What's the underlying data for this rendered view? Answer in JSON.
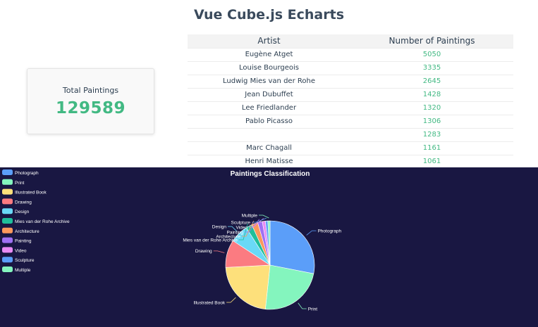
{
  "header": {
    "title": "Vue Cube.js Echarts"
  },
  "stat": {
    "label": "Total Paintings",
    "value": "129589"
  },
  "table": {
    "columns": [
      "Artist",
      "Number of Paintings"
    ],
    "rows": [
      [
        "Eugène Atget",
        "5050"
      ],
      [
        "Louise Bourgeois",
        "3335"
      ],
      [
        "Ludwig Mies van der Rohe",
        "2645"
      ],
      [
        "Jean Dubuffet",
        "1428"
      ],
      [
        "Lee Friedlander",
        "1320"
      ],
      [
        "Pablo Picasso",
        "1306"
      ],
      [
        "",
        "1283"
      ],
      [
        "Marc Chagall",
        "1161"
      ],
      [
        "Henri Matisse",
        "1061"
      ]
    ]
  },
  "colors": {
    "accent": "#42b983",
    "chart_bg": "#191742"
  },
  "chart_data": {
    "type": "pie",
    "title": "Paintings Classification",
    "legend_position": "left",
    "categories": [
      "Photograph",
      "Print",
      "Illustrated Book",
      "Drawing",
      "Design",
      "Mies van der Rohe Archive",
      "Architecture",
      "Painting",
      "Video",
      "Sculpture",
      "Multiple"
    ],
    "values": [
      25,
      21,
      20,
      9,
      6,
      2,
      2,
      1.5,
      1,
      0.8,
      0.7
    ],
    "colors": [
      "#5b9ef9",
      "#84f5be",
      "#fde07b",
      "#fb7b81",
      "#6ad9f6",
      "#1fbe9a",
      "#fb985c",
      "#9f70f3",
      "#e98bf4",
      "#5b9ef9",
      "#84f5be"
    ]
  }
}
